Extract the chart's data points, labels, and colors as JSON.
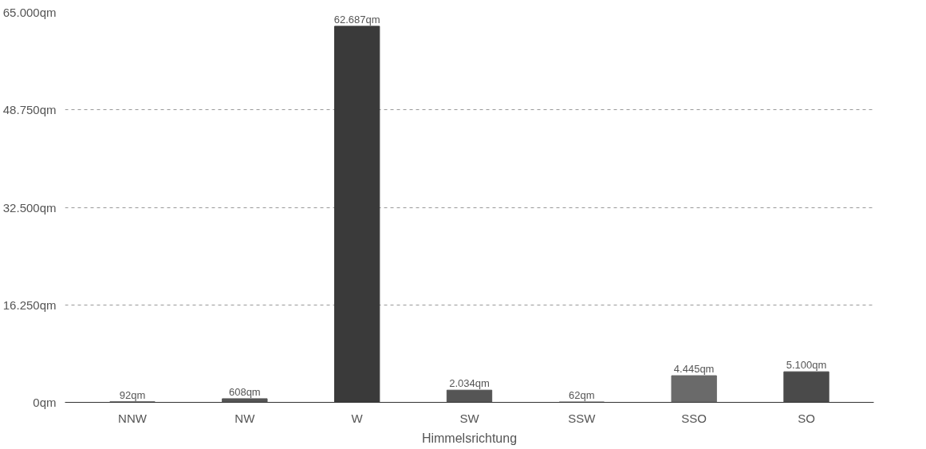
{
  "chart_data": {
    "type": "bar",
    "xlabel": "Himmelsrichtung",
    "categories": [
      "NNW",
      "NW",
      "W",
      "SW",
      "SSW",
      "SSO",
      "SO"
    ],
    "values": [
      92,
      608,
      62687,
      2034,
      62,
      4445,
      5100
    ],
    "value_labels": [
      "92qm",
      "608qm",
      "62.687qm",
      "2.034qm",
      "62qm",
      "4.445qm",
      "5.100qm"
    ],
    "colors": [
      "#555555",
      "#555555",
      "#3a3a3a",
      "#555555",
      "#555555",
      "#6a6a6a",
      "#4a4a4a"
    ],
    "ylim": [
      0,
      65000
    ],
    "yticks": [
      {
        "value": 0,
        "label": "0qm"
      },
      {
        "value": 16250,
        "label": "16.250qm"
      },
      {
        "value": 32500,
        "label": "32.500qm"
      },
      {
        "value": 48750,
        "label": "48.750qm"
      },
      {
        "value": 65000,
        "label": "65.000qm"
      }
    ],
    "grid": "y"
  }
}
